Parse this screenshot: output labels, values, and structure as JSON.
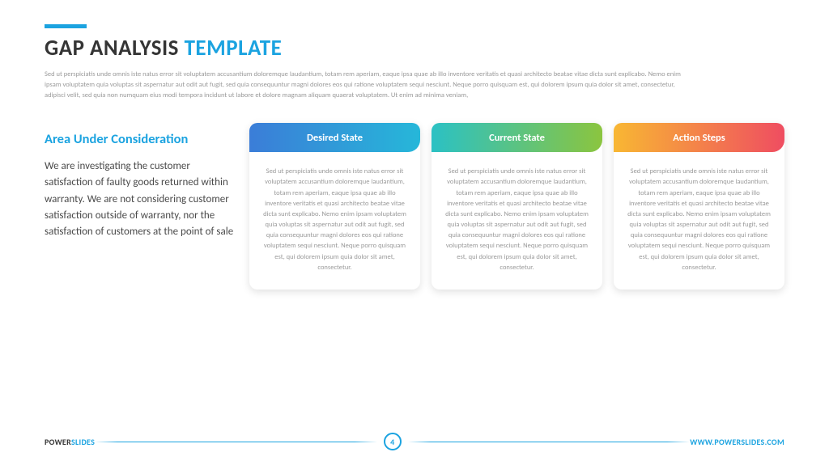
{
  "accent_color": "#1ba3e0",
  "title_part1": "GAP ANALYSIS ",
  "title_part2": "TEMPLATE",
  "intro_text": "Sed ut perspiciatis unde omnis iste natus error sit voluptatem accusantium doloremque laudantium, totam rem aperiam, eaque ipsa quae ab illo inventore veritatis et quasi architecto beatae vitae dicta sunt explicabo. Nemo enim ipsam voluptatem quia voluptas sit aspernatur aut odit aut fugit, sed quia consequuntur magni dolores eos qui ratione voluptatem sequi nesciunt. Neque porro quisquam est, qui dolorem ipsum quia dolor sit amet, consectetur, adipisci velit, sed quia non numquam eius modi tempora incidunt ut labore et dolore magnam aliquam quaerat voluptatem. Ut enim ad minima veniam,",
  "area": {
    "title": "Area Under Consideration",
    "text": "We are investigating the customer satisfaction of faulty goods returned within warranty. We are not considering customer satisfaction outside of warranty, nor the satisfaction of customers at the point of sale"
  },
  "cards": [
    {
      "label": "Desired State",
      "gradient_class": "hg1",
      "gradient_from": "#3b7dd8",
      "gradient_to": "#26b7d9",
      "body": "Sed ut perspiciatis unde omnis iste natus error sit voluptatem accusantium doloremque laudantium, totam rem aperiam, eaque ipsa quae ab illo inventore veritatis et quasi architecto beatae vitae dicta sunt explicabo. Nemo enim ipsam voluptatem quia voluptas sit aspernatur aut odit aut fugit, sed quia consequuntur magni dolores eos qui ratione voluptatem sequi nesciunt. Neque porro quisquam est, qui dolorem ipsum quia dolor sit amet, consectetur."
    },
    {
      "label": "Current State",
      "gradient_class": "hg2",
      "gradient_from": "#2bc1c4",
      "gradient_to": "#8bc53f",
      "body": "Sed ut perspiciatis unde omnis iste natus error sit voluptatem accusantium doloremque laudantium, totam rem aperiam, eaque ipsa quae ab illo inventore veritatis et quasi architecto beatae vitae dicta sunt explicabo. Nemo enim ipsam voluptatem quia voluptas sit aspernatur aut odit aut fugit, sed quia consequuntur magni dolores eos qui ratione voluptatem sequi nesciunt. Neque porro quisquam est, qui dolorem ipsum quia dolor sit amet, consectetur."
    },
    {
      "label": "Action Steps",
      "gradient_class": "hg3",
      "gradient_from": "#f8b733",
      "gradient_to": "#ef4d61",
      "body": "Sed ut perspiciatis unde omnis iste natus error sit voluptatem accusantium doloremque laudantium, totam rem aperiam, eaque ipsa quae ab illo inventore veritatis et quasi architecto beatae vitae dicta sunt explicabo. Nemo enim ipsam voluptatem quia voluptas sit aspernatur aut odit aut fugit, sed quia consequuntur magni dolores eos qui ratione voluptatem sequi nesciunt. Neque porro quisquam est, qui dolorem ipsum quia dolor sit amet, consectetur."
    }
  ],
  "footer": {
    "brand_part1": "POWER",
    "brand_part2": "SLIDES",
    "page_number": "4",
    "url": "WWW.POWERSLIDES.COM"
  }
}
